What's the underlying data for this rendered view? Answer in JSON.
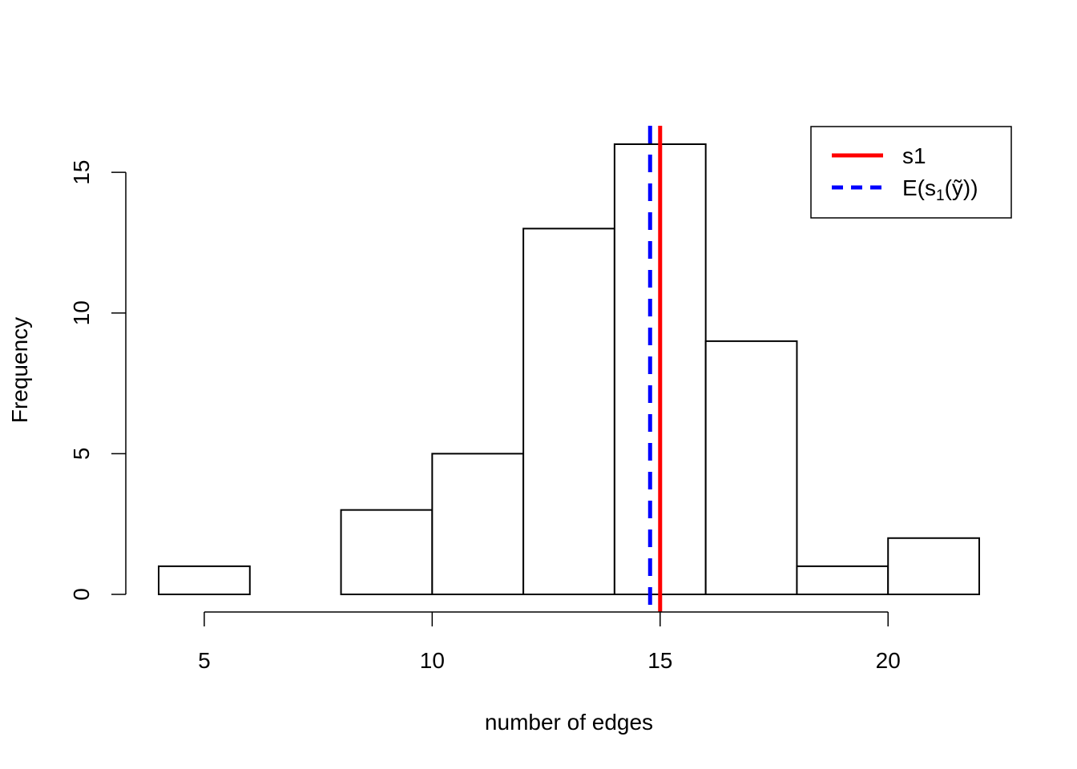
{
  "chart_data": {
    "type": "bar",
    "bin_edges": [
      4,
      6,
      8,
      10,
      12,
      14,
      16,
      18,
      20,
      22
    ],
    "values": [
      1,
      0,
      3,
      5,
      13,
      16,
      9,
      1,
      2
    ],
    "xlabel": "number of edges",
    "ylabel": "Frequency",
    "xlim": [
      4,
      22
    ],
    "ylim": [
      0,
      16
    ],
    "x_ticks": [
      5,
      10,
      15,
      20
    ],
    "y_ticks": [
      0,
      5,
      10,
      15
    ],
    "grid": false,
    "vlines": [
      {
        "name": "s1",
        "x": 15.0,
        "color": "#ff0000",
        "style": "solid"
      },
      {
        "name": "E(s1(ỹ))",
        "x": 14.78,
        "color": "#0000ff",
        "style": "dashed"
      }
    ],
    "legend": {
      "position": "top-right",
      "s1_label": "s1",
      "e_open": "E(s",
      "e_sub": "1",
      "e_close": "(ỹ))"
    }
  }
}
